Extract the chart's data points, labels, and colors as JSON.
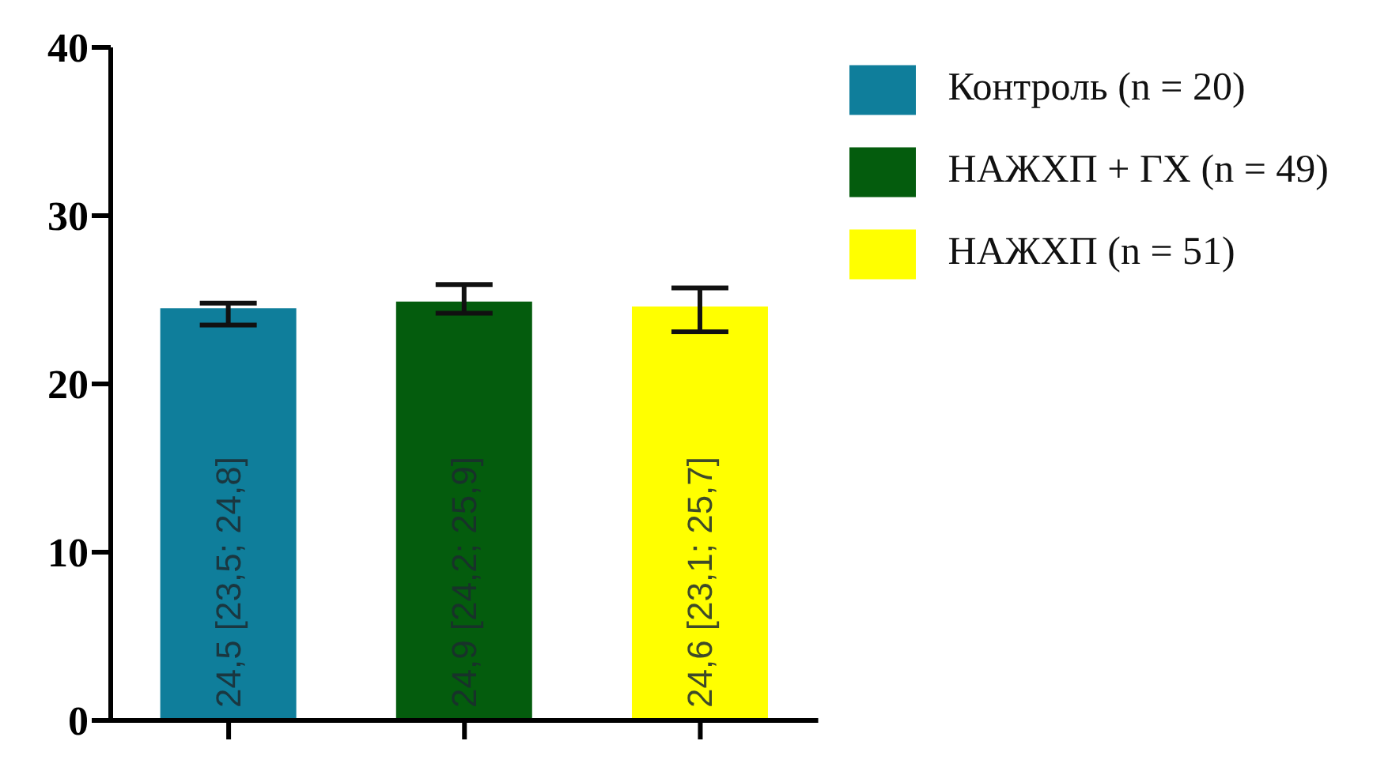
{
  "chart_data": {
    "type": "bar",
    "categories": [
      null,
      null,
      null
    ],
    "series": [
      {
        "name": "Контроль (n = 20)",
        "color": "#0f7e9b",
        "values": [
          24.5,
          null,
          null
        ],
        "errors": [
          [
            23.5,
            24.8
          ],
          null,
          null
        ],
        "value_labels": [
          "24,5 [23,5; 24,8]",
          null,
          null
        ]
      },
      {
        "name": "НАЖХП + ГХ (n = 49)",
        "color": "#045c0d",
        "values": [
          null,
          24.9,
          null
        ],
        "errors": [
          null,
          [
            24.2,
            25.9
          ],
          null
        ],
        "value_labels": [
          null,
          "24,9 [24,2; 25,9]",
          null
        ]
      },
      {
        "name": "НАЖХП (n = 51)",
        "color": "#ffff00",
        "values": [
          null,
          null,
          24.6
        ],
        "errors": [
          null,
          null,
          [
            23.1,
            25.7
          ]
        ],
        "value_labels": [
          null,
          null,
          "24,6 [23,1; 25,7]"
        ]
      }
    ],
    "ylim": [
      0,
      40
    ],
    "yticks": [
      0,
      10,
      20,
      30,
      40
    ],
    "grid": false,
    "legend": "top right"
  }
}
